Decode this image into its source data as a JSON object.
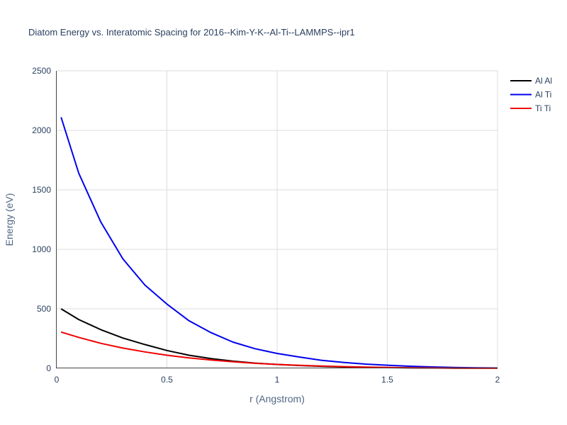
{
  "chart_data": {
    "type": "line",
    "title": "Diatom Energy vs. Interatomic Spacing for 2016--Kim-Y-K--Al-Ti--LAMMPS--ipr1",
    "xlabel": "r (Angstrom)",
    "ylabel": "Energy (eV)",
    "xlim": [
      0,
      2
    ],
    "ylim": [
      0,
      2500
    ],
    "xticks": [
      0,
      0.5,
      1,
      1.5,
      2
    ],
    "xtick_labels": [
      "0",
      "0.5",
      "1",
      "1.5",
      "2"
    ],
    "yticks": [
      0,
      500,
      1000,
      1500,
      2000,
      2500
    ],
    "ytick_labels": [
      "0",
      "500",
      "1000",
      "1500",
      "2000",
      "2500"
    ],
    "grid": true,
    "legend_position": "top-right",
    "x": [
      0.02,
      0.1,
      0.2,
      0.3,
      0.4,
      0.5,
      0.6,
      0.7,
      0.8,
      0.9,
      1.0,
      1.1,
      1.2,
      1.3,
      1.4,
      1.5,
      1.6,
      1.7,
      1.8,
      1.9,
      2.0
    ],
    "series": [
      {
        "name": "Al Al",
        "color": "#000000",
        "values": [
          500,
          410,
          325,
          255,
          200,
          150,
          110,
          82,
          60,
          44,
          33,
          24,
          17,
          12,
          8,
          6,
          4,
          3,
          2,
          1.5,
          1
        ]
      },
      {
        "name": "Al Ti",
        "color": "#0000ee",
        "values": [
          2110,
          1640,
          1230,
          920,
          700,
          540,
          400,
          300,
          220,
          165,
          125,
          95,
          68,
          50,
          36,
          26,
          18,
          12,
          8,
          5,
          3
        ]
      },
      {
        "name": "Ti Ti",
        "color": "#ee0000",
        "values": [
          305,
          260,
          210,
          170,
          138,
          110,
          88,
          70,
          55,
          42,
          33,
          25,
          19,
          14,
          10,
          7,
          5,
          3.5,
          2.5,
          1.5,
          1
        ]
      }
    ]
  }
}
